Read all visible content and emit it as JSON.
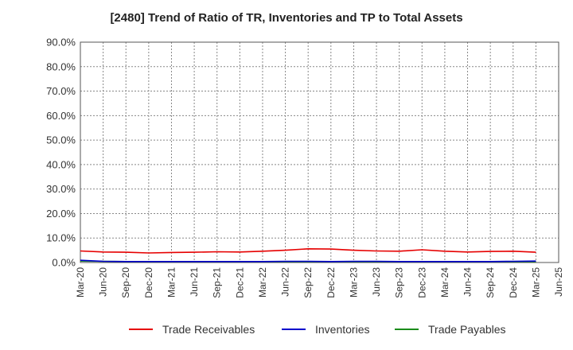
{
  "chart_data": {
    "type": "line",
    "title": "[2480]  Trend of Ratio of TR, Inventories and TP to Total Assets",
    "x": [
      "Mar-20",
      "Jun-20",
      "Sep-20",
      "Dec-20",
      "Mar-21",
      "Jun-21",
      "Sep-21",
      "Dec-21",
      "Mar-22",
      "Jun-22",
      "Sep-22",
      "Dec-22",
      "Mar-23",
      "Jun-23",
      "Sep-23",
      "Dec-23",
      "Mar-24",
      "Jun-24",
      "Sep-24",
      "Dec-24",
      "Mar-25",
      "Jun-25"
    ],
    "ylim": [
      0,
      90
    ],
    "yticks": [
      "0.0%",
      "10.0%",
      "20.0%",
      "30.0%",
      "40.0%",
      "50.0%",
      "60.0%",
      "70.0%",
      "80.0%",
      "90.0%"
    ],
    "grid": true,
    "legend_position": "bottom",
    "series": [
      {
        "name": "Trade Receivables",
        "color": "#e60000",
        "values": [
          4.7,
          4.3,
          4.2,
          3.9,
          4.1,
          4.2,
          4.4,
          4.3,
          4.6,
          5.0,
          5.6,
          5.5,
          5.0,
          4.7,
          4.6,
          5.2,
          4.6,
          4.3,
          4.5,
          4.6,
          4.2,
          null
        ]
      },
      {
        "name": "Inventories",
        "color": "#0000cc",
        "values": [
          0.9,
          0.5,
          0.4,
          0.4,
          0.4,
          0.4,
          0.4,
          0.4,
          0.4,
          0.5,
          0.5,
          0.4,
          0.5,
          0.5,
          0.4,
          0.4,
          0.4,
          0.4,
          0.4,
          0.5,
          0.6,
          null
        ]
      },
      {
        "name": "Trade Payables",
        "color": "#1a8c1a",
        "values": [
          0.6,
          0.5,
          0.4,
          0.4,
          0.4,
          0.4,
          0.4,
          0.4,
          0.4,
          0.4,
          0.4,
          0.4,
          0.4,
          0.4,
          0.4,
          0.4,
          0.4,
          0.4,
          0.4,
          0.4,
          0.4,
          null
        ]
      }
    ]
  }
}
